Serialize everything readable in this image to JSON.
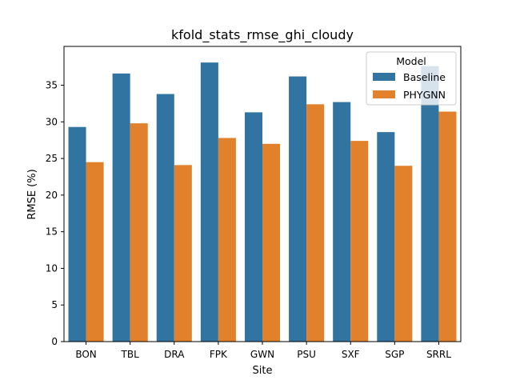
{
  "chart_data": {
    "type": "bar",
    "title": "kfold_stats_rmse_ghi_cloudy",
    "xlabel": "Site",
    "ylabel": "RMSE (%)",
    "categories": [
      "BON",
      "TBL",
      "DRA",
      "FPK",
      "GWN",
      "PSU",
      "SXF",
      "SGP",
      "SRRL"
    ],
    "series": [
      {
        "name": "Baseline",
        "color": "#3274a1",
        "values": [
          29.3,
          36.6,
          33.8,
          38.1,
          31.3,
          36.2,
          32.7,
          28.6,
          37.6
        ]
      },
      {
        "name": "PHYGNN",
        "color": "#e1812c",
        "values": [
          24.5,
          29.8,
          24.1,
          27.8,
          27.0,
          32.4,
          27.4,
          24.0,
          31.4
        ]
      }
    ],
    "ylim": [
      0,
      40.3
    ],
    "yticks": [
      0,
      5,
      10,
      15,
      20,
      25,
      30,
      35
    ],
    "grid": false,
    "legend": {
      "title": "Model",
      "placement": "top-right"
    }
  }
}
